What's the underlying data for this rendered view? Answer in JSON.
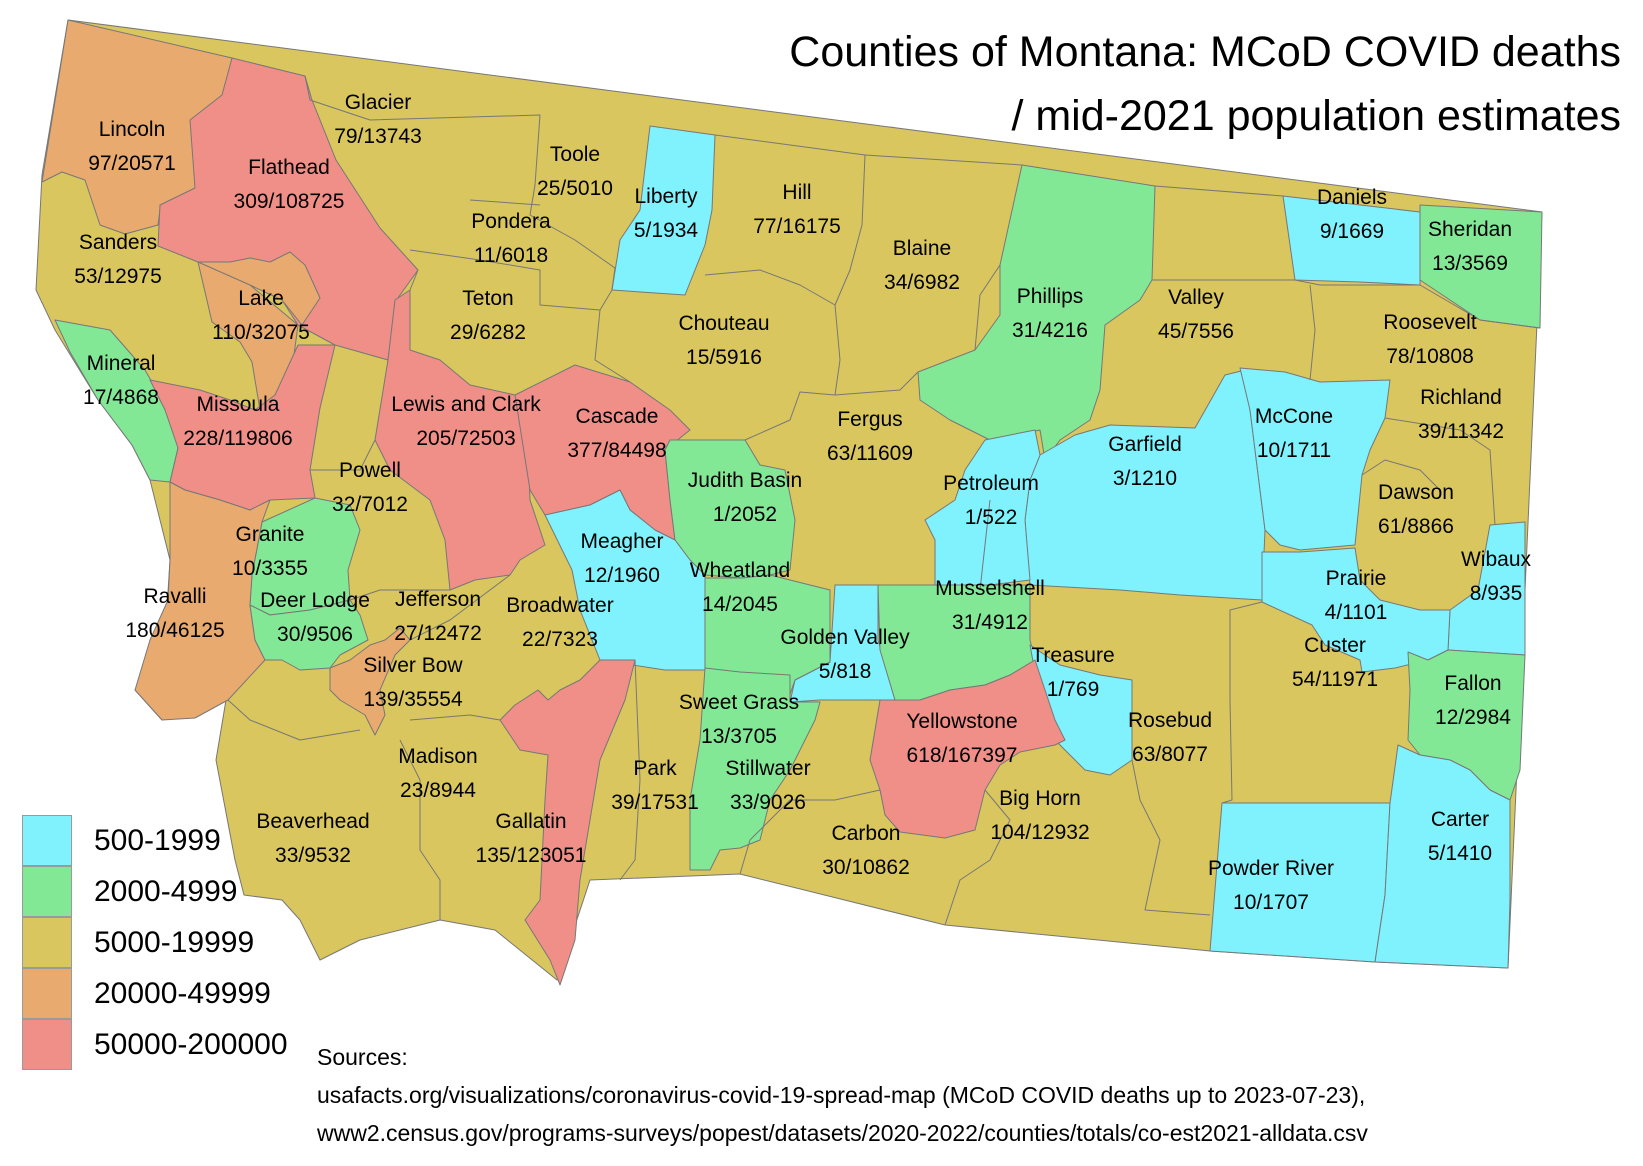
{
  "title": {
    "line1": "Counties of Montana: MCoD COVID deaths",
    "line2": "/ mid-2021 population estimates"
  },
  "colors": {
    "cyan": "#7ff2fe",
    "green": "#82e896",
    "gold": "#d9c65e",
    "orange": "#e8aa6e",
    "red": "#ef8f88",
    "border": "#777777"
  },
  "legend": [
    {
      "label": "500-1999",
      "color": "#7ff2fe"
    },
    {
      "label": "2000-4999",
      "color": "#82e896"
    },
    {
      "label": "5000-19999",
      "color": "#d9c65e"
    },
    {
      "label": "20000-49999",
      "color": "#e8aa6e"
    },
    {
      "label": "50000-200000",
      "color": "#ef8f88"
    }
  ],
  "counties": [
    {
      "name": "Lincoln",
      "value": "97/20571"
    },
    {
      "name": "Glacier",
      "value": "79/13743"
    },
    {
      "name": "Toole",
      "value": "25/5010"
    },
    {
      "name": "Liberty",
      "value": "5/1934"
    },
    {
      "name": "Hill",
      "value": "77/16175"
    },
    {
      "name": "Blaine",
      "value": "34/6982"
    },
    {
      "name": "Phillips",
      "value": "31/4216"
    },
    {
      "name": "Valley",
      "value": "45/7556"
    },
    {
      "name": "Daniels",
      "value": "9/1669"
    },
    {
      "name": "Sheridan",
      "value": "13/3569"
    },
    {
      "name": "Flathead",
      "value": "309/108725"
    },
    {
      "name": "Sanders",
      "value": "53/12975"
    },
    {
      "name": "Pondera",
      "value": "11/6018"
    },
    {
      "name": "Lake",
      "value": "110/32075"
    },
    {
      "name": "Teton",
      "value": "29/6282"
    },
    {
      "name": "Chouteau",
      "value": "15/5916"
    },
    {
      "name": "Roosevelt",
      "value": "78/10808"
    },
    {
      "name": "Mineral",
      "value": "17/4868"
    },
    {
      "name": "Missoula",
      "value": "228/119806"
    },
    {
      "name": "Lewis and Clark",
      "value": "205/72503"
    },
    {
      "name": "Cascade",
      "value": "377/84498"
    },
    {
      "name": "Fergus",
      "value": "63/11609"
    },
    {
      "name": "Garfield",
      "value": "3/1210"
    },
    {
      "name": "McCone",
      "value": "10/1711"
    },
    {
      "name": "Richland",
      "value": "39/11342"
    },
    {
      "name": "Powell",
      "value": "32/7012"
    },
    {
      "name": "Judith Basin",
      "value": "1/2052"
    },
    {
      "name": "Petroleum",
      "value": "1/522"
    },
    {
      "name": "Dawson",
      "value": "61/8866"
    },
    {
      "name": "Granite",
      "value": "10/3355"
    },
    {
      "name": "Meagher",
      "value": "12/1960"
    },
    {
      "name": "Wibaux",
      "value": "8/935"
    },
    {
      "name": "Ravalli",
      "value": "180/46125"
    },
    {
      "name": "Deer Lodge",
      "value": "30/9506"
    },
    {
      "name": "Jefferson",
      "value": "27/12472"
    },
    {
      "name": "Broadwater",
      "value": "22/7323"
    },
    {
      "name": "Wheatland",
      "value": "14/2045"
    },
    {
      "name": "Musselshell",
      "value": "31/4912"
    },
    {
      "name": "Prairie",
      "value": "4/1101"
    },
    {
      "name": "Golden Valley",
      "value": "5/818"
    },
    {
      "name": "Treasure",
      "value": "1/769"
    },
    {
      "name": "Custer",
      "value": "54/11971"
    },
    {
      "name": "Silver Bow",
      "value": "139/35554"
    },
    {
      "name": "Fallon",
      "value": "12/2984"
    },
    {
      "name": "Sweet Grass",
      "value": "13/3705"
    },
    {
      "name": "Yellowstone",
      "value": "618/167397"
    },
    {
      "name": "Rosebud",
      "value": "63/8077"
    },
    {
      "name": "Madison",
      "value": "23/8944"
    },
    {
      "name": "Park",
      "value": "39/17531"
    },
    {
      "name": "Stillwater",
      "value": "33/9026"
    },
    {
      "name": "Big Horn",
      "value": "104/12932"
    },
    {
      "name": "Carter",
      "value": "5/1410"
    },
    {
      "name": "Gallatin",
      "value": "135/123051"
    },
    {
      "name": "Beaverhead",
      "value": "33/9532"
    },
    {
      "name": "Carbon",
      "value": "30/10862"
    },
    {
      "name": "Powder River",
      "value": "10/1707"
    }
  ],
  "sources": {
    "heading": "Sources:",
    "line1": "usafacts.org/visualizations/coronavirus-covid-19-spread-map (MCoD COVID deaths up to 2023-07-23),",
    "line2": "www2.census.gov/programs-surveys/popest/datasets/2020-2022/counties/totals/co-est2021-alldata.csv"
  }
}
